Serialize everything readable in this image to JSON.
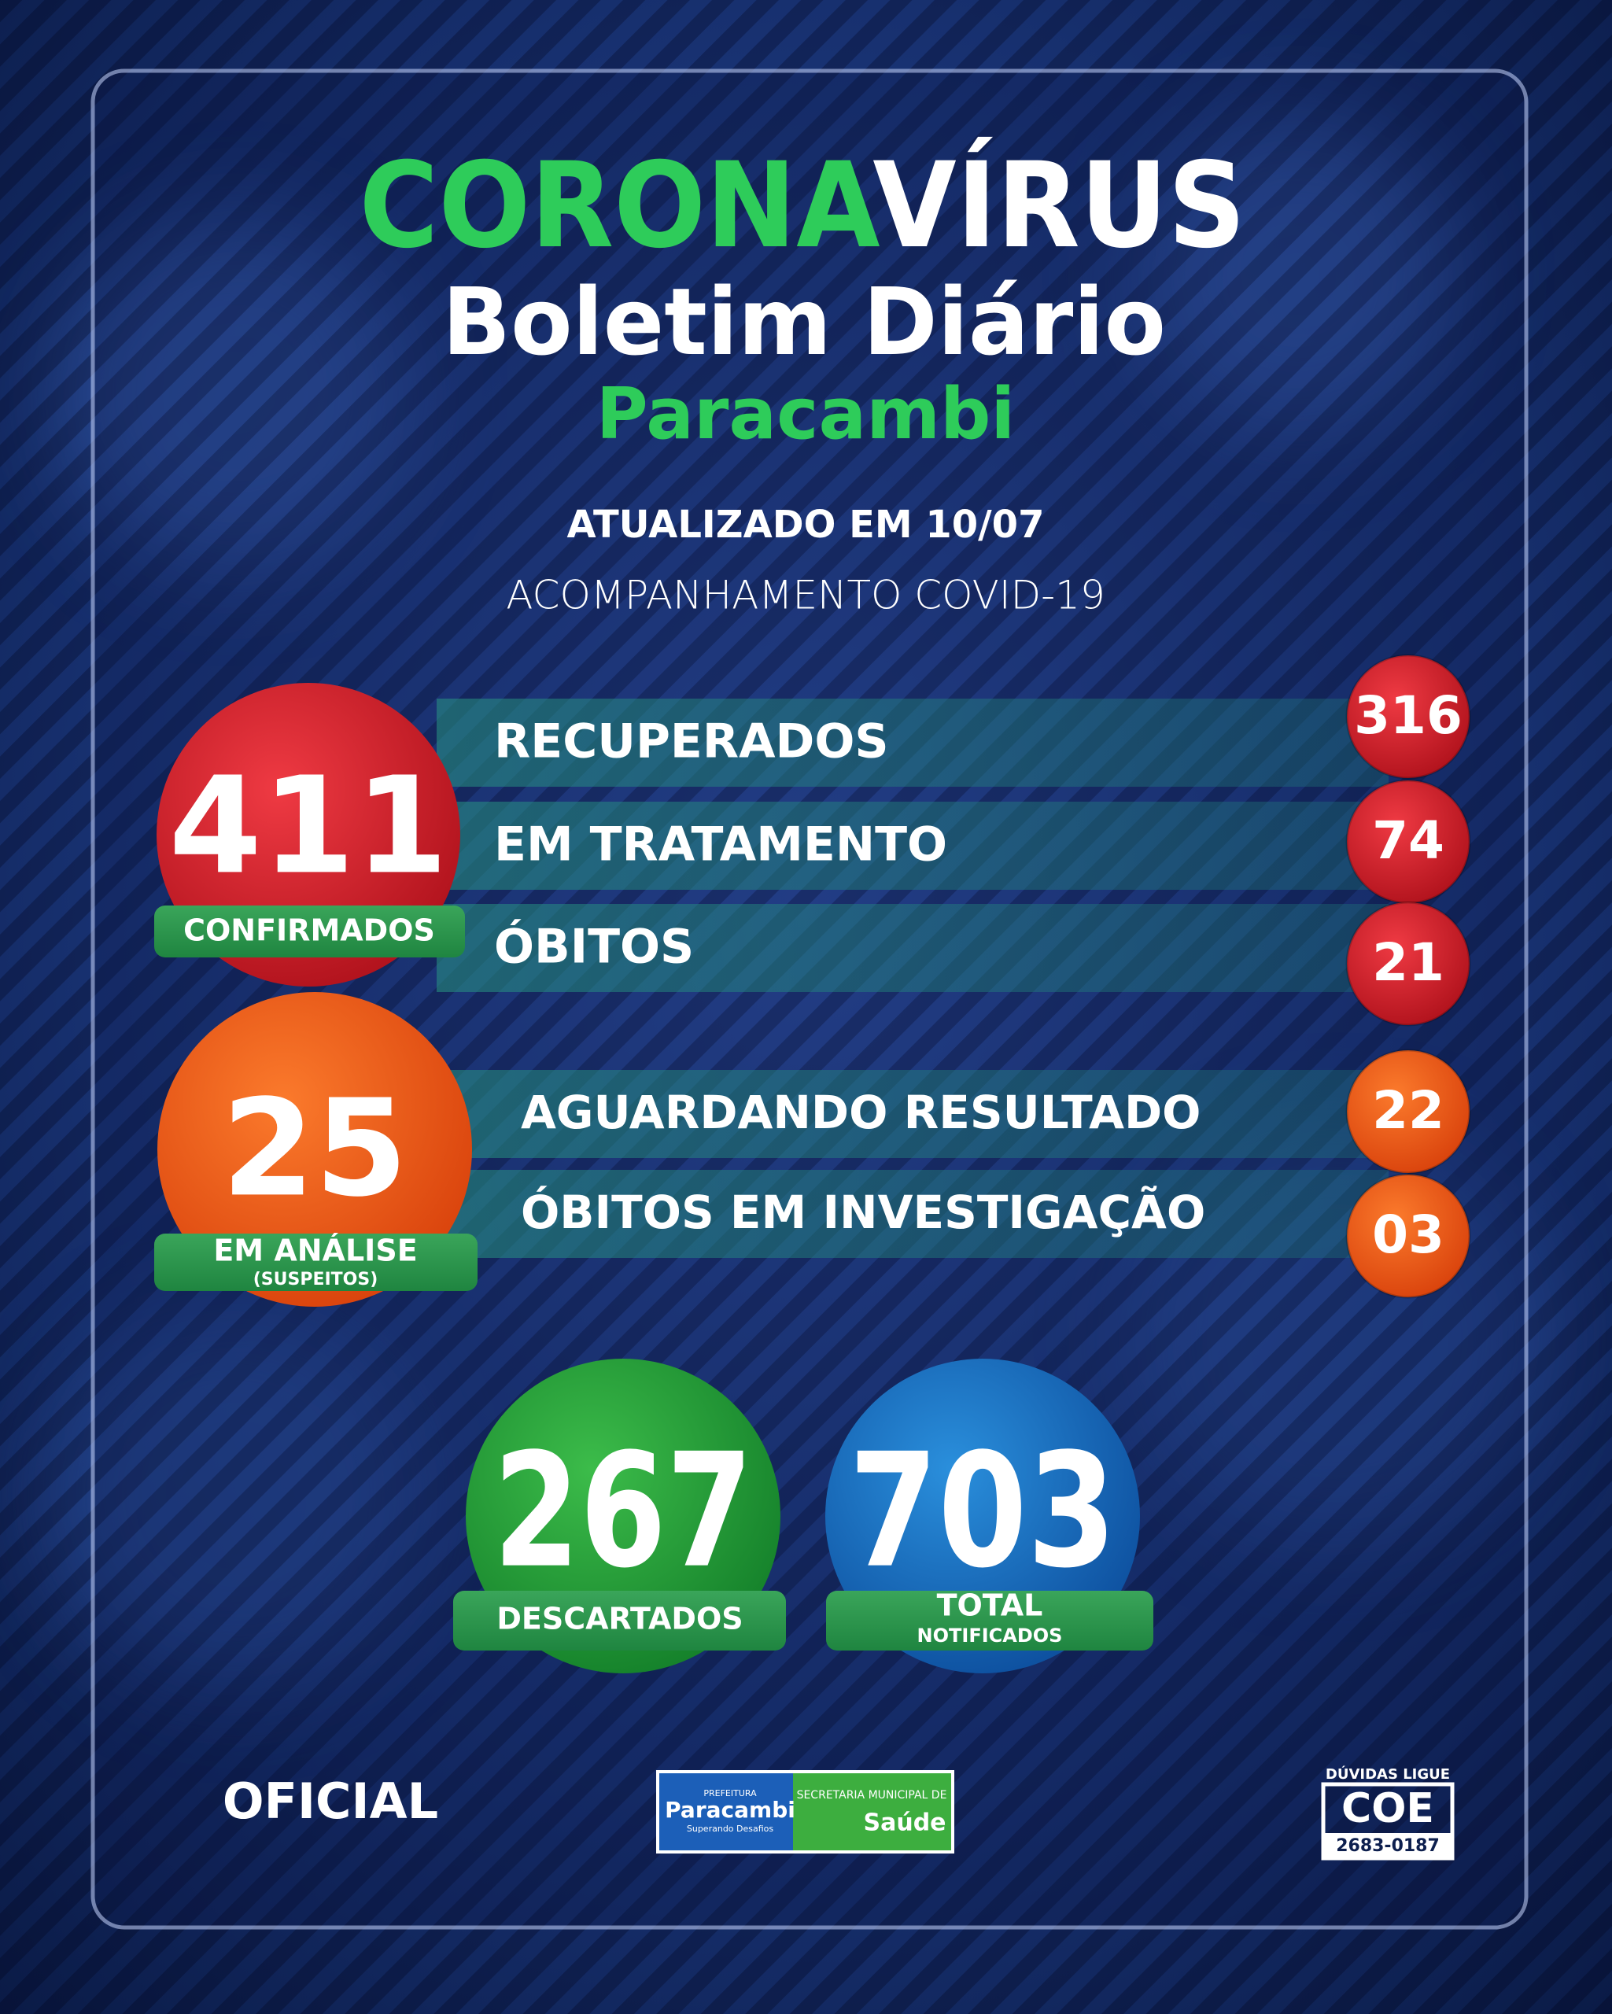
{
  "header": {
    "title_part1": "CORONA",
    "title_part2": "VÍRUS",
    "subtitle": "Boletim Diário",
    "city": "Paracambi",
    "updated": "ATUALIZADO EM 10/07",
    "tracking": "ACOMPANHAMENTO COVID-19"
  },
  "confirmed": {
    "value": "411",
    "label": "CONFIRMADOS",
    "items": [
      {
        "label": "RECUPERADOS",
        "value": "316"
      },
      {
        "label": "EM TRATAMENTO",
        "value": "74"
      },
      {
        "label": "ÓBITOS",
        "value": "21"
      }
    ]
  },
  "analysis": {
    "value": "25",
    "label": "EM ANÁLISE",
    "sublabel": "(SUSPEITOS)",
    "items": [
      {
        "label": "AGUARDANDO RESULTADO",
        "value": "22"
      },
      {
        "label": "ÓBITOS EM INVESTIGAÇÃO",
        "value": "03"
      }
    ]
  },
  "discarded": {
    "value": "267",
    "label": "DESCARTADOS"
  },
  "total": {
    "value": "703",
    "label": "TOTAL",
    "sublabel": "NOTIFICADOS"
  },
  "footer": {
    "official": "OFICIAL",
    "logo": {
      "prefeitura": "PREFEITURA",
      "name": "Paracambi",
      "tagline": "Superando Desafios",
      "secretaria": "SECRETARIA MUNICIPAL DE",
      "saude": "Saúde"
    },
    "contact": {
      "ask": "DÚVIDAS LIGUE",
      "name": "COE",
      "phone": "2683-0187"
    }
  }
}
